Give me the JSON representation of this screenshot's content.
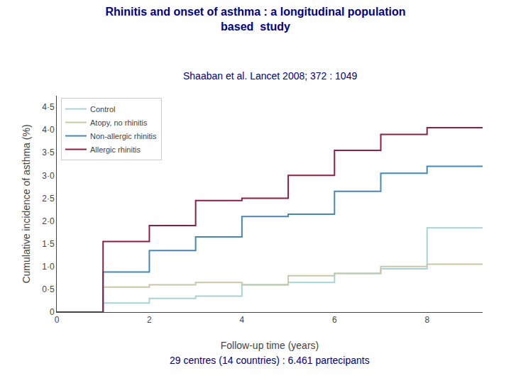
{
  "chart_data": {
    "type": "line",
    "title": "Rhinitis and onset of asthma : a longitudinal population\nbased  study",
    "title_color": "#00008B",
    "subtitle": "Shaaban et al. Lancet 2008; 372 : 1049",
    "subtitle_color": "#00008B",
    "footnote": "29 centres (14 countries) : 6.461 partecipants",
    "footnote_color": "#000080",
    "x_label": "Follow-up time (years)",
    "y_label": "Cumulative incidence of asthma (%)",
    "x": [
      0,
      1,
      1,
      2,
      2,
      3,
      3,
      4,
      4,
      5,
      5,
      6,
      6,
      7,
      7,
      8,
      8,
      9.2
    ],
    "series": [
      {
        "name": "Control",
        "color": "#a8d4d4",
        "values": [
          0,
          0,
          0.2,
          0.2,
          0.3,
          0.3,
          0.35,
          0.35,
          0.6,
          0.6,
          0.65,
          0.65,
          0.85,
          0.85,
          0.95,
          0.95,
          1.85,
          1.85
        ]
      },
      {
        "name": "Atopy, no rhinitis",
        "color": "#c8c8a8",
        "values": [
          0,
          0,
          0.55,
          0.55,
          0.6,
          0.6,
          0.65,
          0.65,
          0.6,
          0.6,
          0.8,
          0.8,
          0.85,
          0.85,
          1.0,
          1.0,
          1.05,
          1.05
        ]
      },
      {
        "name": "Non-allergic rhinitis",
        "color": "#4488b8",
        "values": [
          0,
          0,
          0.88,
          0.88,
          1.35,
          1.35,
          1.65,
          1.65,
          2.1,
          2.1,
          2.15,
          2.15,
          2.65,
          2.65,
          3.05,
          3.05,
          3.2,
          3.2
        ]
      },
      {
        "name": "Allergic rhinitis",
        "color": "#8b2040",
        "values": [
          0,
          0,
          1.55,
          1.55,
          1.9,
          1.9,
          2.45,
          2.45,
          2.5,
          2.5,
          3.0,
          3.0,
          3.55,
          3.55,
          3.9,
          3.9,
          4.05,
          4.05
        ]
      }
    ],
    "xlim": [
      0,
      9.2
    ],
    "ylim": [
      0,
      4.75
    ],
    "xticks": [
      0,
      2,
      4,
      6,
      8
    ],
    "yticks": [
      0,
      {
        "value": 0.5,
        "label": "0·5"
      },
      {
        "value": 1.0,
        "label": "1·0"
      },
      {
        "value": 1.5,
        "label": "1·5"
      },
      {
        "value": 2.0,
        "label": "2·0"
      },
      {
        "value": 2.5,
        "label": "2·5"
      },
      {
        "value": 3.0,
        "label": "3·0"
      },
      {
        "value": 3.5,
        "label": "3·5"
      },
      {
        "value": 4.0,
        "label": "4·0"
      },
      {
        "value": 4.5,
        "label": "4·5"
      }
    ],
    "grid": false,
    "legend": "upper left"
  }
}
